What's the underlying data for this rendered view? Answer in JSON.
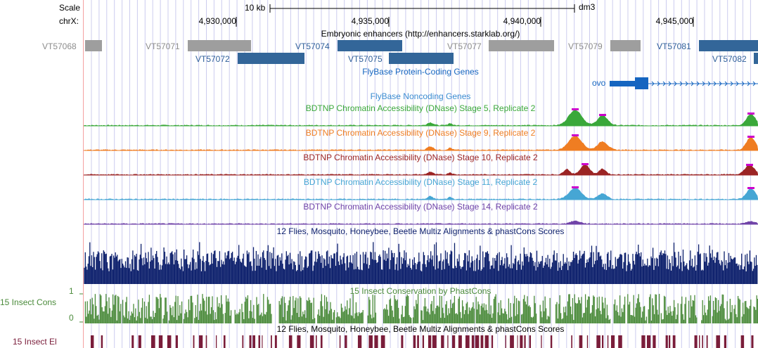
{
  "ruler": {
    "scale_label": "Scale",
    "chrom_label": "chrX:",
    "scale_bar_label": "10 kb",
    "assembly": "dm3",
    "ticks": [
      "4,930,000",
      "4,935,000",
      "4,940,000",
      "4,945,000"
    ]
  },
  "tracks": {
    "enhancers": {
      "title": "Embryonic enhancers (http://enhancers.starklab.org/)",
      "items": [
        {
          "label": "VT57068",
          "color": "#999999"
        },
        {
          "label": "VT57071",
          "color": "#999999"
        },
        {
          "label": "VT57072",
          "color": "#336699"
        },
        {
          "label": "VT57074",
          "color": "#336699"
        },
        {
          "label": "VT57075",
          "color": "#336699"
        },
        {
          "label": "VT57077",
          "color": "#999999"
        },
        {
          "label": "VT57079",
          "color": "#999999"
        },
        {
          "label": "VT57081",
          "color": "#336699"
        },
        {
          "label": "VT57082",
          "color": "#336699"
        }
      ]
    },
    "coding_genes": {
      "title": "FlyBase Protein-Coding Genes",
      "gene_label": "ovo",
      "color": "#1565c0"
    },
    "noncoding_genes": {
      "title": "FlyBase Noncoding Genes",
      "color": "#3a8bd1"
    },
    "dnase": [
      {
        "title": "BDTNP Chromatin Accessibility (DNase) Stage 5, Replicate 2",
        "color": "#3aa83a"
      },
      {
        "title": "BDTNP Chromatin Accessibility (DNase) Stage 9, Replicate 2",
        "color": "#ef7d22"
      },
      {
        "title": "BDTNP Chromatin Accessibility (DNase) Stage 10, Replicate 2",
        "color": "#9b2424"
      },
      {
        "title": "BDTNP Chromatin Accessibility (DNase) Stage 11, Replicate 2",
        "color": "#46a6d4"
      },
      {
        "title": "BDTNP Chromatin Accessibility (DNase) Stage 14, Replicate 2",
        "color": "#7043a8"
      }
    ],
    "multiz": {
      "title": "12 Flies, Mosquito, Honeybee, Beetle Multiz Alignments & phastCons Scores",
      "color": "#0b1e6b"
    },
    "insect_cons": {
      "title": "15 Insect Conservation by PhastCons",
      "side_label": "15 Insect Cons",
      "axis_max": "1",
      "axis_min": "0",
      "color": "#4b8b3b"
    },
    "insect_el": {
      "title": "12 Flies, Mosquito, Honeybee, Beetle Multiz Alignments & phastCons Scores",
      "side_label": "15 Insect El",
      "color": "#7a1d3a"
    }
  },
  "highlight_color": "#f4a0a0",
  "grid_color": "#ccccee"
}
